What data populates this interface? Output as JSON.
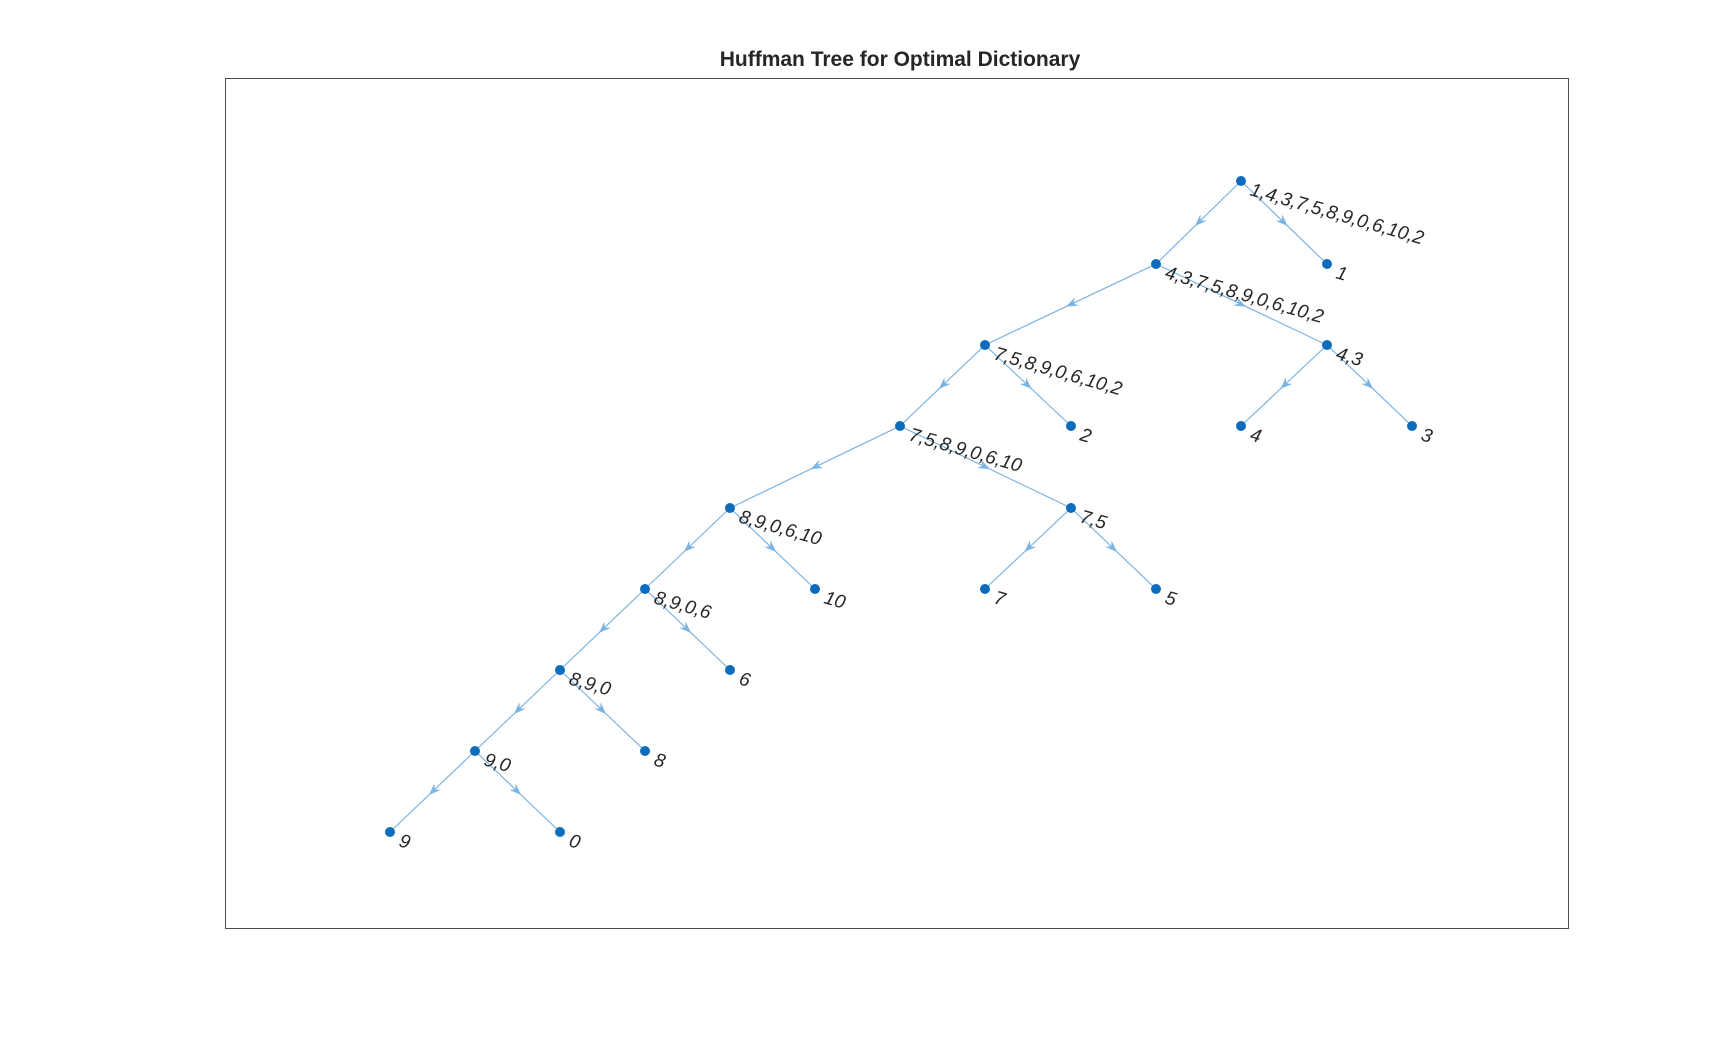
{
  "title": "Huffman Tree for Optimal Dictionary",
  "colors": {
    "edge": "#7bb3e3",
    "node": "#0f6cbd",
    "text": "#262626",
    "frame": "#4d4d4d"
  },
  "nodes": [
    {
      "id": "n1",
      "label": "1,4,3,7,5,8,9,0,6,10,2"
    },
    {
      "id": "n2",
      "label": "4,3,7,5,8,9,0,6,10,2"
    },
    {
      "id": "n3",
      "label": "1"
    },
    {
      "id": "n4",
      "label": "7,5,8,9,0,6,10,2"
    },
    {
      "id": "n5",
      "label": "4,3"
    },
    {
      "id": "n6",
      "label": "7,5,8,9,0,6,10"
    },
    {
      "id": "n7",
      "label": "2"
    },
    {
      "id": "n8",
      "label": "4"
    },
    {
      "id": "n9",
      "label": "3"
    },
    {
      "id": "n10",
      "label": "8,9,0,6,10"
    },
    {
      "id": "n11",
      "label": "7,5"
    },
    {
      "id": "n12",
      "label": "8,9,0,6"
    },
    {
      "id": "n13",
      "label": "10"
    },
    {
      "id": "n14",
      "label": "7"
    },
    {
      "id": "n15",
      "label": "5"
    },
    {
      "id": "n16",
      "label": "8,9,0"
    },
    {
      "id": "n17",
      "label": "6"
    },
    {
      "id": "n18",
      "label": "9,0"
    },
    {
      "id": "n19",
      "label": "8"
    },
    {
      "id": "n20",
      "label": "9"
    },
    {
      "id": "n21",
      "label": "0"
    }
  ],
  "edges": [
    [
      "n1",
      "n2"
    ],
    [
      "n1",
      "n3"
    ],
    [
      "n2",
      "n4"
    ],
    [
      "n2",
      "n5"
    ],
    [
      "n4",
      "n6"
    ],
    [
      "n4",
      "n7"
    ],
    [
      "n5",
      "n8"
    ],
    [
      "n5",
      "n9"
    ],
    [
      "n6",
      "n10"
    ],
    [
      "n6",
      "n11"
    ],
    [
      "n10",
      "n12"
    ],
    [
      "n10",
      "n13"
    ],
    [
      "n11",
      "n14"
    ],
    [
      "n11",
      "n15"
    ],
    [
      "n12",
      "n16"
    ],
    [
      "n12",
      "n17"
    ],
    [
      "n16",
      "n18"
    ],
    [
      "n16",
      "n19"
    ],
    [
      "n18",
      "n20"
    ],
    [
      "n18",
      "n21"
    ]
  ]
}
